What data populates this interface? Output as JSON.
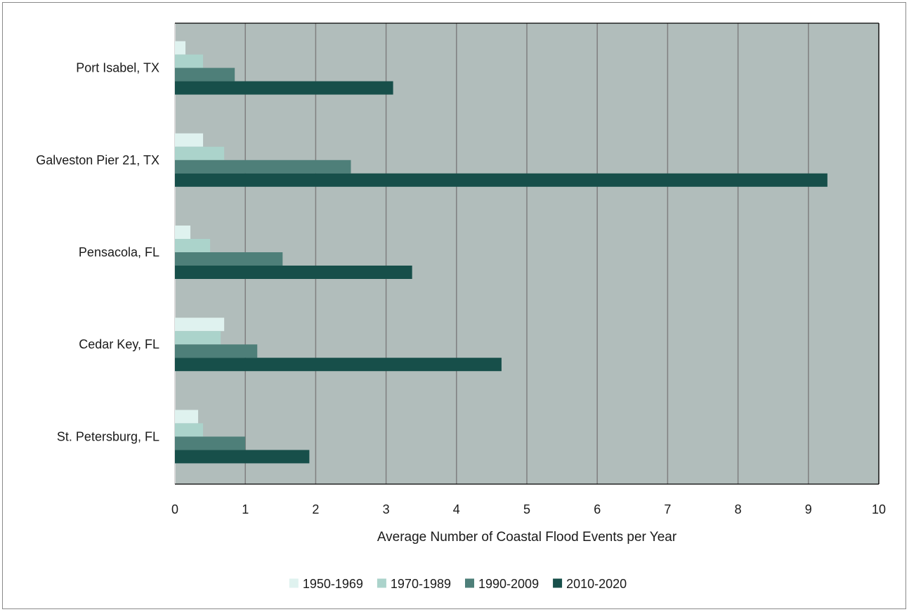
{
  "chart_data": {
    "type": "bar",
    "orientation": "horizontal",
    "categories": [
      "Port Isabel, TX",
      "Galveston Pier 21, TX",
      "Pensacola, FL",
      "Cedar Key, FL",
      "St. Petersburg, FL"
    ],
    "series": [
      {
        "name": "1950-1969",
        "color": "#dff2ef",
        "values": [
          0.15,
          0.4,
          0.22,
          0.7,
          0.33
        ]
      },
      {
        "name": "1970-1989",
        "color": "#abd3cb",
        "values": [
          0.4,
          0.7,
          0.5,
          0.65,
          0.4
        ]
      },
      {
        "name": "1990-2009",
        "color": "#4e7f79",
        "values": [
          0.85,
          2.5,
          1.53,
          1.17,
          1.0
        ]
      },
      {
        "name": "2010-2020",
        "color": "#174f4a",
        "values": [
          3.1,
          9.27,
          3.37,
          4.64,
          1.91
        ]
      }
    ],
    "xlabel": "Average Number of Coastal Flood Events per Year",
    "ylabel": "",
    "xlim": [
      0,
      10
    ],
    "xticks": [
      "0",
      "1",
      "2",
      "3",
      "4",
      "5",
      "6",
      "7",
      "8",
      "9",
      "10"
    ],
    "grid": "vertical",
    "plot_background": "#b1bdbb",
    "legend_position": "bottom"
  }
}
